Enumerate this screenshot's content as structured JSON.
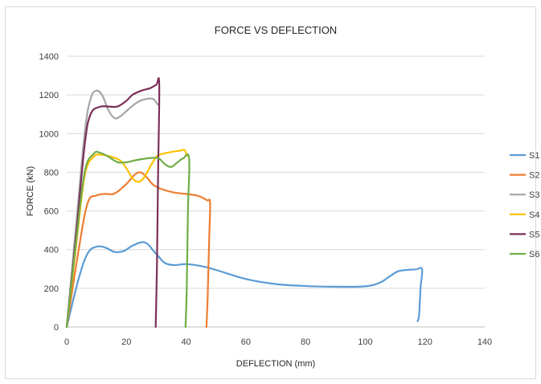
{
  "chart_data": {
    "type": "line",
    "title": "FORCE VS DEFLECTION",
    "xlabel": "DEFLECTION (mm)",
    "ylabel": "FORCE (kN)",
    "xlim": [
      0,
      140
    ],
    "ylim": [
      0,
      1400
    ],
    "xticks": [
      "0",
      "20",
      "40",
      "60",
      "80",
      "100",
      "120",
      "140"
    ],
    "yticks": [
      "0",
      "200",
      "400",
      "600",
      "800",
      "1000",
      "1200",
      "1400"
    ],
    "grid": "horizontal",
    "legend": "right",
    "series": [
      {
        "name": "S1",
        "color": "#5b9bd5",
        "points": [
          [
            0,
            0
          ],
          [
            4,
            250
          ],
          [
            7,
            380
          ],
          [
            10,
            415
          ],
          [
            13,
            410
          ],
          [
            16,
            388
          ],
          [
            19,
            392
          ],
          [
            22,
            420
          ],
          [
            25,
            438
          ],
          [
            27,
            430
          ],
          [
            29,
            395
          ],
          [
            31,
            360
          ],
          [
            33,
            330
          ],
          [
            36,
            320
          ],
          [
            40,
            325
          ],
          [
            45,
            315
          ],
          [
            50,
            295
          ],
          [
            60,
            248
          ],
          [
            70,
            222
          ],
          [
            80,
            212
          ],
          [
            90,
            208
          ],
          [
            100,
            210
          ],
          [
            105,
            230
          ],
          [
            108,
            260
          ],
          [
            111,
            288
          ],
          [
            114,
            295
          ],
          [
            117,
            298
          ],
          [
            119,
            298
          ],
          [
            118.5,
            200
          ],
          [
            118,
            60
          ],
          [
            117.5,
            30
          ]
        ]
      },
      {
        "name": "S2",
        "color": "#ed7d31",
        "points": [
          [
            0,
            0
          ],
          [
            4,
            400
          ],
          [
            7,
            640
          ],
          [
            10,
            680
          ],
          [
            13,
            688
          ],
          [
            16,
            690
          ],
          [
            20,
            740
          ],
          [
            23,
            790
          ],
          [
            25,
            798
          ],
          [
            27,
            770
          ],
          [
            29,
            735
          ],
          [
            32,
            712
          ],
          [
            36,
            695
          ],
          [
            40,
            688
          ],
          [
            44,
            678
          ],
          [
            47,
            655
          ],
          [
            48,
            640
          ],
          [
            47.7,
            450
          ],
          [
            47.2,
            150
          ],
          [
            46.8,
            0
          ]
        ]
      },
      {
        "name": "S3",
        "color": "#a5a5a5",
        "points": [
          [
            0,
            0
          ],
          [
            3,
            500
          ],
          [
            6,
            1000
          ],
          [
            8,
            1180
          ],
          [
            10,
            1222
          ],
          [
            12,
            1195
          ],
          [
            14,
            1120
          ],
          [
            16,
            1080
          ],
          [
            18,
            1090
          ],
          [
            21,
            1130
          ],
          [
            24,
            1165
          ],
          [
            27,
            1180
          ],
          [
            29,
            1178
          ],
          [
            30.5,
            1150
          ]
        ]
      },
      {
        "name": "S4",
        "color": "#ffc000",
        "points": [
          [
            0,
            0
          ],
          [
            3,
            400
          ],
          [
            6,
            780
          ],
          [
            9,
            880
          ],
          [
            12,
            890
          ],
          [
            15,
            880
          ],
          [
            18,
            860
          ],
          [
            20,
            820
          ],
          [
            22,
            770
          ],
          [
            24,
            750
          ],
          [
            26,
            775
          ],
          [
            28,
            830
          ],
          [
            30,
            880
          ],
          [
            32,
            895
          ],
          [
            35,
            905
          ],
          [
            38,
            912
          ],
          [
            39.5,
            915
          ],
          [
            40.2,
            885
          ]
        ]
      },
      {
        "name": "S5",
        "color": "#7b3059",
        "points": [
          [
            0,
            0
          ],
          [
            3,
            450
          ],
          [
            6,
            940
          ],
          [
            8,
            1100
          ],
          [
            11,
            1138
          ],
          [
            14,
            1140
          ],
          [
            17,
            1140
          ],
          [
            20,
            1170
          ],
          [
            22,
            1200
          ],
          [
            25,
            1222
          ],
          [
            28,
            1235
          ],
          [
            30,
            1252
          ],
          [
            31,
            1250
          ],
          [
            30.6,
            800
          ],
          [
            30.2,
            300
          ],
          [
            29.8,
            0
          ]
        ]
      },
      {
        "name": "S6",
        "color": "#70ad47",
        "points": [
          [
            0,
            0
          ],
          [
            3,
            420
          ],
          [
            6,
            800
          ],
          [
            9,
            895
          ],
          [
            11,
            902
          ],
          [
            14,
            880
          ],
          [
            17,
            852
          ],
          [
            20,
            852
          ],
          [
            23,
            862
          ],
          [
            26,
            870
          ],
          [
            29,
            875
          ],
          [
            31,
            870
          ],
          [
            33,
            840
          ],
          [
            35,
            828
          ],
          [
            37,
            850
          ],
          [
            39,
            872
          ],
          [
            41,
            870
          ],
          [
            40.6,
            600
          ],
          [
            40.2,
            200
          ],
          [
            39.8,
            0
          ]
        ]
      }
    ]
  }
}
